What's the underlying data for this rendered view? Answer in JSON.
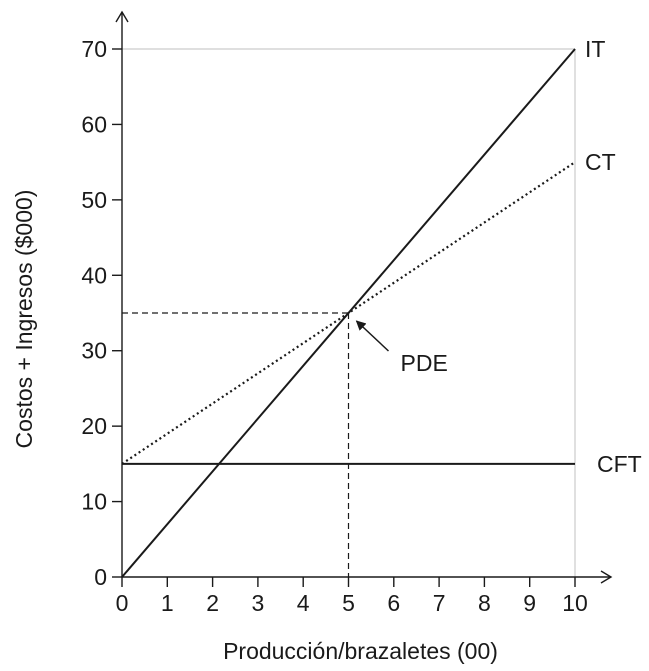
{
  "chart_data": {
    "type": "line",
    "xlabel": "Producción/brazaletes (00)",
    "ylabel": "Costos + Ingresos ($000)",
    "xlim": [
      0,
      10
    ],
    "ylim": [
      0,
      70
    ],
    "x_ticks": [
      0,
      1,
      2,
      3,
      4,
      5,
      6,
      7,
      8,
      9,
      10
    ],
    "y_ticks": [
      0,
      10,
      20,
      30,
      40,
      50,
      60,
      70
    ],
    "series": [
      {
        "name": "IT",
        "style": "solid",
        "color": "#1a1a1a",
        "x": [
          0,
          10
        ],
        "y": [
          0,
          70
        ]
      },
      {
        "name": "CT",
        "style": "dotted",
        "color": "#1a1a1a",
        "x": [
          0,
          10
        ],
        "y": [
          15,
          55
        ]
      },
      {
        "name": "CFT",
        "style": "solid",
        "color": "#1a1a1a",
        "x": [
          0,
          10
        ],
        "y": [
          15,
          15
        ]
      }
    ],
    "annotations": [
      {
        "label": "PDE",
        "x": 5,
        "y": 35
      }
    ],
    "frame_lines": {
      "top_y": 70,
      "right_x": 10,
      "color": "#cccccc"
    }
  }
}
